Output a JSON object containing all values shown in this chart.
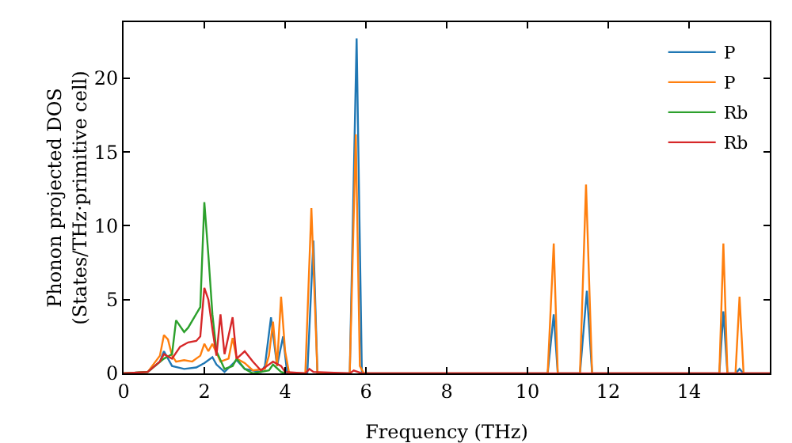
{
  "chart_data": {
    "type": "line",
    "xlabel": "Frequency (THz)",
    "ylabel": "Phonon projected DOS\n(States/THz·primitive cell)",
    "xlim": [
      0,
      16
    ],
    "ylim": [
      0,
      23.8
    ],
    "xticks": [
      0,
      2,
      4,
      6,
      8,
      10,
      12,
      14
    ],
    "yticks": [
      0,
      5,
      10,
      15,
      20
    ],
    "grid": false,
    "legend": "top right",
    "marker": "none",
    "line_style": "solid",
    "series": [
      {
        "name": "P",
        "color": "#1f77b4",
        "x": [
          0,
          0.6,
          0.9,
          1.0,
          1.2,
          1.5,
          1.8,
          2.0,
          2.2,
          2.3,
          2.5,
          2.8,
          3.0,
          3.2,
          3.4,
          3.5,
          3.65,
          3.8,
          3.95,
          4.05,
          4.55,
          4.7,
          4.8,
          5.6,
          5.77,
          5.9,
          10.5,
          10.65,
          10.75,
          11.3,
          11.47,
          11.6,
          14.75,
          14.85,
          14.95,
          15.15,
          15.25,
          15.35,
          16
        ],
        "values": [
          0,
          0.1,
          0.8,
          1.5,
          0.5,
          0.3,
          0.4,
          0.7,
          1.1,
          0.6,
          0.1,
          0.9,
          0.3,
          0.2,
          0.1,
          0.5,
          3.8,
          0.5,
          2.5,
          0,
          0,
          9.0,
          0,
          0,
          22.7,
          0,
          0,
          4.0,
          0,
          0,
          5.6,
          0,
          0,
          4.2,
          0,
          0,
          0.3,
          0,
          0
        ]
      },
      {
        "name": "P",
        "color": "#ff7f0e",
        "x": [
          0,
          0.6,
          0.9,
          1.0,
          1.1,
          1.2,
          1.3,
          1.5,
          1.7,
          1.9,
          2.0,
          2.1,
          2.2,
          2.4,
          2.6,
          2.7,
          2.8,
          3.0,
          3.2,
          3.5,
          3.6,
          3.7,
          3.8,
          3.9,
          4.0,
          4.1,
          4.5,
          4.65,
          4.8,
          5.6,
          5.75,
          5.85,
          5.95,
          10.5,
          10.65,
          10.75,
          11.3,
          11.45,
          11.6,
          14.75,
          14.85,
          14.95,
          15.15,
          15.25,
          15.35,
          16
        ],
        "values": [
          0,
          0.1,
          1.2,
          2.6,
          2.3,
          1.2,
          0.8,
          0.9,
          0.8,
          1.2,
          2.0,
          1.5,
          2.0,
          0.8,
          1.0,
          2.4,
          1.0,
          0.7,
          0.2,
          0.3,
          1.2,
          3.5,
          0.5,
          5.2,
          1.5,
          0,
          0,
          11.2,
          0,
          0,
          16.2,
          0.5,
          0,
          0,
          8.8,
          0,
          0,
          12.8,
          0,
          0,
          8.8,
          0,
          0,
          5.2,
          0,
          0
        ]
      },
      {
        "name": "Rb",
        "color": "#2ca02c",
        "x": [
          0,
          0.6,
          1.0,
          1.2,
          1.3,
          1.5,
          1.6,
          1.75,
          1.9,
          2.0,
          2.1,
          2.2,
          2.3,
          2.5,
          2.7,
          2.8,
          3.0,
          3.2,
          3.6,
          3.7,
          3.9,
          4.0
        ],
        "values": [
          0,
          0.1,
          1.0,
          1.3,
          3.6,
          2.8,
          3.1,
          3.8,
          4.5,
          11.6,
          8.0,
          4.0,
          1.5,
          0.3,
          0.5,
          1.0,
          0.3,
          0,
          0.2,
          0.6,
          0.1,
          0
        ]
      },
      {
        "name": "Rb",
        "color": "#d62728",
        "x": [
          0,
          0.6,
          0.9,
          1.0,
          1.2,
          1.4,
          1.6,
          1.8,
          1.9,
          2.0,
          2.1,
          2.2,
          2.3,
          2.4,
          2.5,
          2.7,
          2.8,
          3.0,
          3.2,
          3.4,
          3.7,
          3.9,
          4.0,
          4.5,
          4.6,
          4.7,
          5.6,
          5.7,
          5.9,
          16
        ],
        "values": [
          0,
          0.1,
          0.8,
          1.3,
          1.0,
          1.8,
          2.1,
          2.2,
          2.5,
          5.8,
          5.0,
          3.0,
          1.2,
          4.0,
          1.3,
          3.8,
          1.0,
          1.5,
          0.8,
          0.2,
          0.8,
          0.5,
          0.1,
          0,
          0.3,
          0.1,
          0,
          0.2,
          0,
          0
        ]
      }
    ]
  }
}
